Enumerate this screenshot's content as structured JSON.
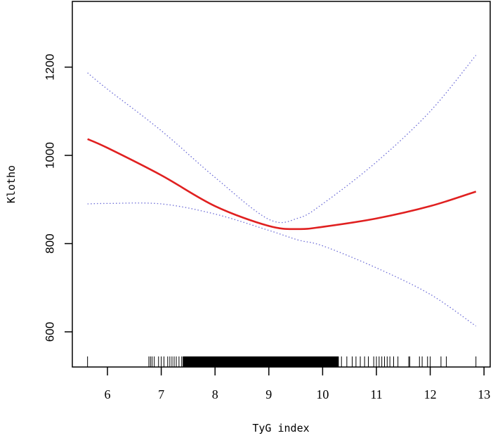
{
  "chart_data": {
    "type": "line",
    "title": "",
    "xlabel": "TyG index",
    "ylabel": "Klotho",
    "xlim": [
      5.35,
      13.15
    ],
    "ylim": [
      520,
      1340
    ],
    "x_ticks": [
      6,
      7,
      8,
      9,
      10,
      11,
      12,
      13
    ],
    "y_ticks": [
      600,
      800,
      1000,
      1200
    ],
    "grid": false,
    "legend": null,
    "x": [
      5.63,
      6,
      7,
      8,
      9,
      9.55,
      10,
      11,
      12,
      12.85
    ],
    "series": [
      {
        "name": "Fitted curve",
        "style": "solid",
        "color": "#e02020",
        "values": [
          1037,
          1017,
          955,
          885,
          840,
          833,
          838,
          857,
          885,
          918
        ]
      },
      {
        "name": "Upper 95% CI",
        "style": "dotted",
        "color": "#6b6bd6",
        "values": [
          1187,
          1150,
          1056,
          950,
          855,
          858,
          890,
          985,
          1100,
          1227
        ]
      },
      {
        "name": "Lower 95% CI",
        "style": "dotted",
        "color": "#6b6bd6",
        "values": [
          890,
          891,
          890,
          867,
          830,
          808,
          795,
          745,
          685,
          613
        ]
      }
    ],
    "rug": {
      "description": "Rug of observed TyG index values along x-axis",
      "sparse_left": [
        5.63,
        6.77,
        6.8,
        6.83,
        6.87,
        6.95,
        7.0,
        7.05,
        7.12,
        7.16,
        7.2,
        7.24,
        7.28,
        7.33,
        7.38
      ],
      "dense_range": [
        7.4,
        10.3
      ],
      "sparse_right": [
        10.35,
        10.45,
        10.55,
        10.62,
        10.7,
        10.78,
        10.85,
        10.95,
        11.0,
        11.05,
        11.1,
        11.15,
        11.2,
        11.25,
        11.32,
        11.4,
        11.6,
        11.62,
        11.8,
        11.85,
        11.95,
        12.0,
        12.2,
        12.3,
        12.85
      ]
    }
  },
  "labels": {
    "xlabel": "TyG index",
    "ylabel": "Klotho",
    "x_ticks": [
      "6",
      "7",
      "8",
      "9",
      "10",
      "11",
      "12",
      "13"
    ],
    "y_ticks": [
      "600",
      "800",
      "1000",
      "1200"
    ]
  }
}
